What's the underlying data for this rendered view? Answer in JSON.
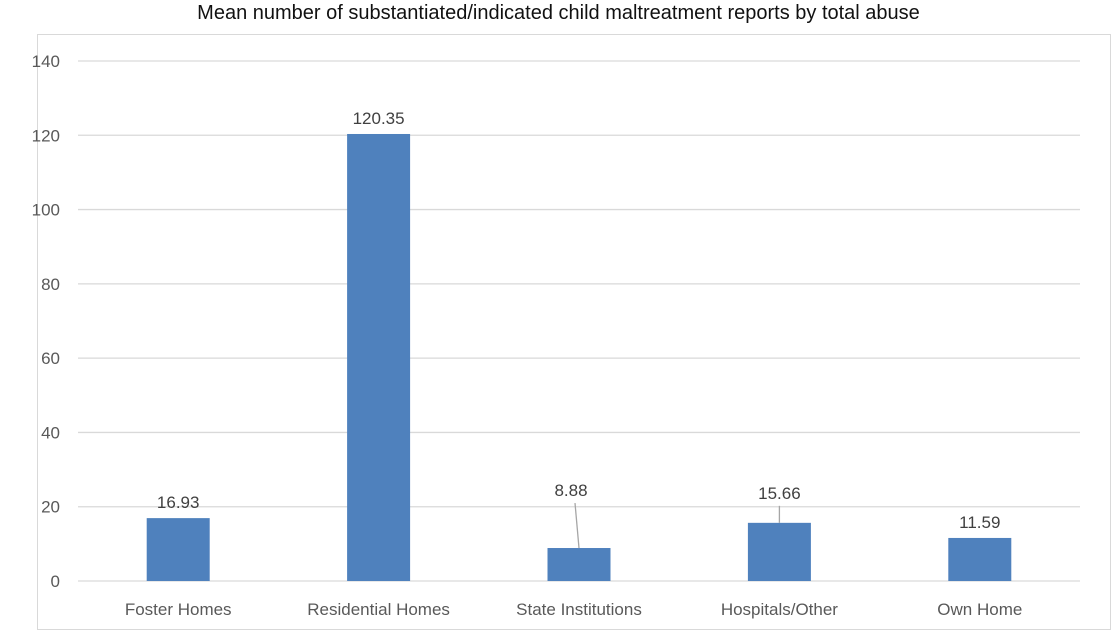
{
  "chart_data": {
    "type": "bar",
    "title": "Mean number of substantiated/indicated child maltreatment reports by total abuse",
    "xlabel": "",
    "ylabel": "",
    "categories": [
      "Foster Homes",
      "Residential Homes",
      "State Institutions",
      "Hospitals/Other",
      "Own Home"
    ],
    "values": [
      16.93,
      120.35,
      8.88,
      15.66,
      11.59
    ],
    "data_labels": [
      "16.93",
      "120.35",
      "8.88",
      "15.66",
      "11.59"
    ],
    "ylim": [
      0,
      140
    ],
    "yticks": [
      0,
      20,
      40,
      60,
      80,
      100,
      120,
      140
    ],
    "grid": true,
    "legend": "none",
    "bar_color": "#4f81bd",
    "grid_color": "#d9d9d9"
  }
}
